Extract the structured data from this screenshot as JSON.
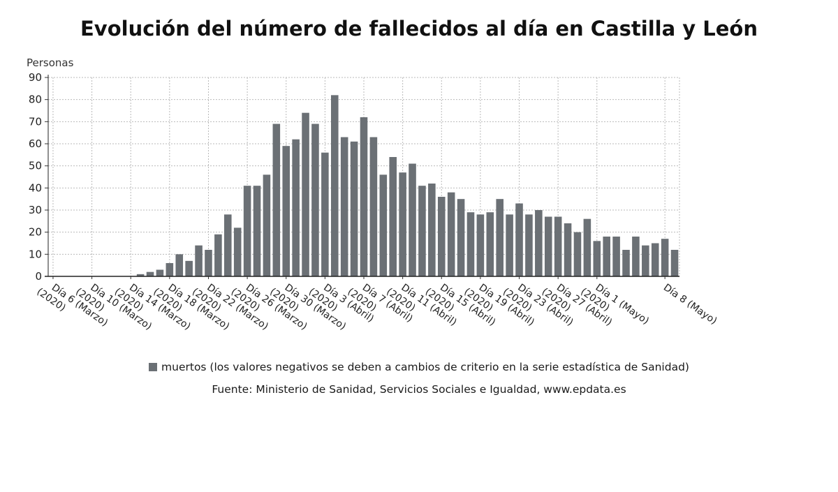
{
  "chart_data": {
    "type": "bar",
    "title": "Evolución del número de fallecidos al día en Castilla y León",
    "ylabel": "Personas",
    "xlabel": "",
    "ylim": [
      0,
      90
    ],
    "yticks": [
      0,
      10,
      20,
      30,
      40,
      50,
      60,
      70,
      80,
      90
    ],
    "grid": true,
    "bar_color": "#6b7075",
    "x_tick_labels": [
      {
        "index": 0,
        "label": [
          "Día 6 (Marzo)",
          "(2020)"
        ]
      },
      {
        "index": 4,
        "label": [
          "Día 10 (Marzo)",
          "(2020)"
        ]
      },
      {
        "index": 8,
        "label": [
          "Día 14 (Marzo)",
          "(2020)"
        ]
      },
      {
        "index": 12,
        "label": [
          "Día 18 (Marzo)",
          "(2020)"
        ]
      },
      {
        "index": 16,
        "label": [
          "Día 22 (Marzo)",
          "(2020)"
        ]
      },
      {
        "index": 20,
        "label": [
          "Día 26 (Marzo)",
          "(2020)"
        ]
      },
      {
        "index": 24,
        "label": [
          "Día 30 (Marzo)",
          "(2020)"
        ]
      },
      {
        "index": 28,
        "label": [
          "Día 3 (Abril)",
          "(2020)"
        ]
      },
      {
        "index": 32,
        "label": [
          "Día 7 (Abril)",
          "(2020)"
        ]
      },
      {
        "index": 36,
        "label": [
          "Día 11 (Abril)",
          "(2020)"
        ]
      },
      {
        "index": 40,
        "label": [
          "Día 15 (Abril)",
          "(2020)"
        ]
      },
      {
        "index": 44,
        "label": [
          "Día 19 (Abril)",
          "(2020)"
        ]
      },
      {
        "index": 48,
        "label": [
          "Día 23 (Abril)",
          "(2020)"
        ]
      },
      {
        "index": 52,
        "label": [
          "Día 27 (Abril)",
          "(2020)"
        ]
      },
      {
        "index": 56,
        "label": [
          "Día 1 (Mayo)",
          "(2020)"
        ]
      },
      {
        "index": 63,
        "label": [
          "Día 8 (Mayo)"
        ]
      }
    ],
    "series": [
      {
        "name": "muertos (los valores negativos se deben a cambios de criterio en la serie estadística de Sanidad)",
        "values": [
          0,
          0,
          0,
          0,
          0,
          0,
          0,
          0,
          0,
          1,
          2,
          3,
          6,
          10,
          7,
          14,
          12,
          19,
          28,
          22,
          41,
          41,
          46,
          69,
          59,
          62,
          74,
          69,
          56,
          82,
          63,
          61,
          72,
          63,
          46,
          54,
          47,
          51,
          41,
          42,
          36,
          38,
          35,
          29,
          28,
          29,
          35,
          28,
          33,
          28,
          30,
          27,
          27,
          24,
          20,
          26,
          16,
          18,
          18,
          12,
          18,
          14,
          15,
          17,
          12
        ]
      }
    ]
  },
  "legend": {
    "label": "muertos (los valores negativos se deben a cambios de criterio en la serie estadística de Sanidad)"
  },
  "source": "Fuente: Ministerio de Sanidad, Servicios Sociales e Igualdad, www.epdata.es"
}
